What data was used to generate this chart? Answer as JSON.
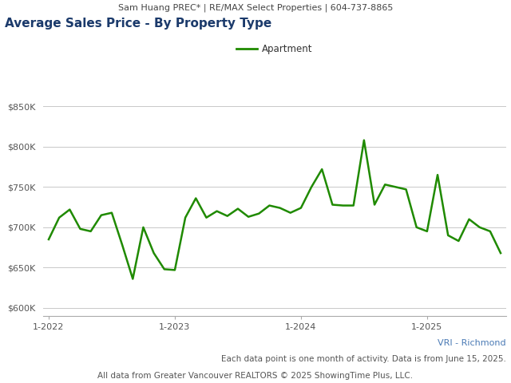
{
  "header_text": "Sam Huang PREC* | RE/MAX Select Properties | 604-737-8865",
  "title": "Average Sales Price - By Property Type",
  "legend_label": "Apartment",
  "line_color": "#1f8a00",
  "ytick_values": [
    600000,
    650000,
    700000,
    750000,
    800000,
    850000
  ],
  "ylim": [
    590000,
    875000
  ],
  "footer_text1": "VRI - Richmond",
  "footer_text2": "Each data point is one month of activity. Data is from June 15, 2025.",
  "footer_text3": "All data from Greater Vancouver REALTORS © 2025 ShowingTime Plus, LLC.",
  "background_color": "#ffffff",
  "plot_bg_color": "#ffffff",
  "grid_color": "#c8c8c8",
  "header_bg_color": "#e0e0e0",
  "values": [
    685000,
    712000,
    722000,
    698000,
    695000,
    715000,
    718000,
    678000,
    636000,
    700000,
    668000,
    648000,
    647000,
    712000,
    736000,
    712000,
    720000,
    714000,
    723000,
    713000,
    717000,
    727000,
    724000,
    718000,
    724000,
    750000,
    772000,
    728000,
    727000,
    727000,
    808000,
    728000,
    753000,
    750000,
    747000,
    700000,
    695000,
    765000,
    690000,
    683000,
    710000,
    700000,
    695000,
    668000
  ],
  "xtick_labels": [
    "1-2022",
    "1-2023",
    "1-2024",
    "1-2025"
  ],
  "xtick_positions": [
    0,
    12,
    24,
    36
  ],
  "title_color": "#1b3a6b",
  "header_text_color": "#444444",
  "tick_color": "#555555",
  "footer1_color": "#4a7ab5",
  "footer23_color": "#555555"
}
